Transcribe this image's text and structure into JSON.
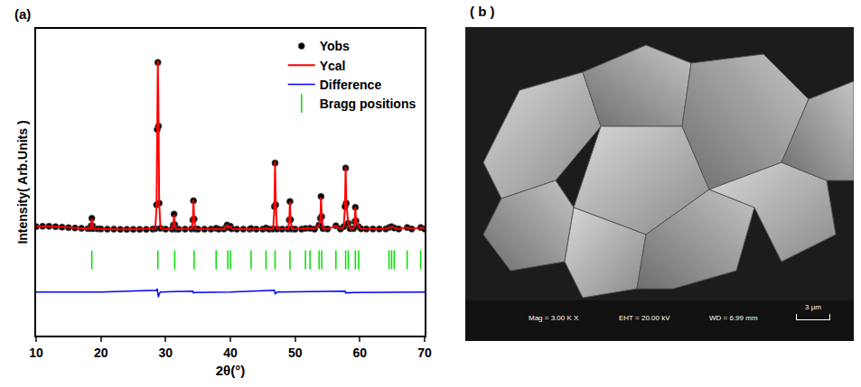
{
  "chart_data": {
    "type": "scatter",
    "panel_label": "(a)",
    "xlabel": "2θ(°)",
    "ylabel": "Intensity( Arb.Units )",
    "xlim": [
      10,
      70
    ],
    "xticks": [
      10,
      20,
      30,
      40,
      50,
      60,
      70
    ],
    "ylim": [
      -630,
      1200
    ],
    "tick_labels": "x",
    "legend": "top right",
    "series": [
      {
        "name": "Yobs",
        "type": "scatter",
        "marker": "circle",
        "color": "#000000",
        "x": [
          10,
          11,
          12,
          13,
          14,
          15,
          16,
          17,
          18,
          18.4,
          18.5,
          18.6,
          18.7,
          18.8,
          19.5,
          20,
          21,
          22,
          23,
          24,
          25,
          26,
          27,
          28,
          28.4,
          28.6,
          28.7,
          28.8,
          28.9,
          29.0,
          29.2,
          30,
          31,
          31.2,
          31.3,
          31.4,
          31.6,
          32,
          33,
          34,
          34.2,
          34.3,
          34.4,
          34.6,
          35,
          36,
          37,
          37.8,
          38.2,
          39,
          39.4,
          39.5,
          39.7,
          40,
          40.2,
          41,
          42,
          43,
          43.2,
          44,
          45,
          45.5,
          46,
          46.6,
          46.8,
          46.9,
          47,
          47.2,
          48,
          48.9,
          49.1,
          49.2,
          49.3,
          49.5,
          50,
          51,
          51.6,
          52.3,
          53,
          53.7,
          53.9,
          54,
          54.1,
          54.3,
          55,
          56.3,
          57,
          57.5,
          57.7,
          57.8,
          57.9,
          58.2,
          58.5,
          59,
          59.2,
          59.3,
          59.4,
          59.8,
          60.2,
          61,
          62,
          63,
          64,
          64.5,
          64.9,
          65.3,
          66,
          67.3,
          68,
          69.4,
          70
        ],
        "values": [
          20,
          22,
          22,
          20,
          17,
          14,
          12,
          10,
          8,
          8,
          25,
          70,
          25,
          8,
          7,
          6,
          5,
          5,
          4,
          4,
          4,
          4,
          4,
          5,
          8,
          150,
          600,
          1000,
          620,
          160,
          10,
          5,
          5,
          30,
          95,
          32,
          5,
          5,
          5,
          6,
          60,
          175,
          65,
          6,
          5,
          5,
          5,
          10,
          5,
          6,
          18,
          30,
          15,
          22,
          7,
          5,
          5,
          5,
          9,
          5,
          5,
          12,
          5,
          6,
          140,
          400,
          150,
          6,
          5,
          6,
          60,
          170,
          62,
          6,
          5,
          5,
          9,
          10,
          5,
          30,
          70,
          200,
          80,
          8,
          6,
          25,
          6,
          20,
          140,
          370,
          160,
          40,
          8,
          8,
          50,
          135,
          55,
          20,
          7,
          6,
          6,
          6,
          6,
          15,
          20,
          12,
          6,
          15,
          6,
          15,
          6
        ]
      },
      {
        "name": "Ycal",
        "type": "line",
        "color": "#ff0000",
        "x": [
          10,
          11,
          12,
          13,
          14,
          15,
          16,
          17,
          18,
          18.4,
          18.5,
          18.6,
          18.7,
          18.8,
          19.5,
          20,
          21,
          22,
          23,
          24,
          25,
          26,
          27,
          28,
          28.4,
          28.6,
          28.7,
          28.8,
          28.9,
          29.0,
          29.2,
          30,
          31,
          31.2,
          31.3,
          31.4,
          31.6,
          32,
          33,
          34,
          34.2,
          34.3,
          34.4,
          34.6,
          35,
          36,
          37,
          37.8,
          38.2,
          39,
          39.4,
          39.5,
          39.7,
          40,
          40.2,
          41,
          42,
          43,
          43.2,
          44,
          45,
          45.5,
          46,
          46.6,
          46.8,
          46.9,
          47,
          47.2,
          48,
          48.9,
          49.1,
          49.2,
          49.3,
          49.5,
          50,
          51,
          51.6,
          52.3,
          53,
          53.7,
          53.9,
          54,
          54.1,
          54.3,
          55,
          56.3,
          57,
          57.5,
          57.7,
          57.8,
          57.9,
          58.2,
          58.5,
          59,
          59.2,
          59.3,
          59.4,
          59.8,
          60.2,
          61,
          62,
          63,
          64,
          64.5,
          64.9,
          65.3,
          66,
          67.3,
          68,
          69.4,
          70
        ],
        "values": [
          20,
          22,
          22,
          20,
          17,
          14,
          12,
          10,
          8,
          8,
          24,
          68,
          26,
          8,
          7,
          6,
          5,
          5,
          4,
          4,
          4,
          4,
          4,
          5,
          8,
          140,
          580,
          1010,
          650,
          170,
          10,
          5,
          5,
          28,
          92,
          34,
          5,
          5,
          5,
          6,
          55,
          180,
          68,
          6,
          5,
          5,
          5,
          9,
          5,
          6,
          17,
          29,
          15,
          22,
          7,
          5,
          5,
          5,
          8,
          5,
          5,
          11,
          5,
          6,
          130,
          410,
          160,
          6,
          5,
          6,
          58,
          168,
          64,
          6,
          5,
          5,
          9,
          10,
          5,
          28,
          72,
          196,
          82,
          8,
          6,
          24,
          6,
          18,
          135,
          375,
          165,
          40,
          8,
          8,
          48,
          138,
          56,
          19,
          7,
          6,
          6,
          6,
          6,
          14,
          19,
          12,
          6,
          15,
          6,
          15,
          6
        ]
      },
      {
        "name": "Difference",
        "type": "line",
        "color": "#0000ff",
        "x": [
          10,
          18.5,
          18.6,
          18.7,
          20,
          28.6,
          28.7,
          28.8,
          28.9,
          29.0,
          29.2,
          31.3,
          34.2,
          34.3,
          34.4,
          40,
          46.8,
          46.9,
          47.0,
          47.2,
          54.0,
          57.7,
          57.8,
          57.9,
          59.3,
          70
        ],
        "values": [
          -370,
          -368,
          -368,
          -371,
          -370,
          -360,
          -350,
          -380,
          -400,
          -380,
          -370,
          -368,
          -365,
          -375,
          -373,
          -370,
          -360,
          -380,
          -380,
          -370,
          -366,
          -365,
          -375,
          -375,
          -373,
          -370
        ]
      },
      {
        "name": "Bragg positions",
        "type": "scatter",
        "marker": "tick",
        "color": "#00e000",
        "x": [
          18.6,
          28.8,
          31.4,
          34.4,
          37.8,
          39.6,
          40.0,
          43.2,
          45.5,
          46.9,
          49.2,
          51.6,
          52.3,
          53.7,
          54.1,
          56.3,
          57.8,
          58.2,
          59.3,
          59.8,
          64.5,
          64.9,
          65.3,
          67.3,
          69.4
        ],
        "values": [
          -178,
          -178,
          -178,
          -178,
          -178,
          -178,
          -178,
          -178,
          -178,
          -178,
          -178,
          -178,
          -178,
          -178,
          -178,
          -178,
          -178,
          -178,
          -178,
          -178,
          -178,
          -178,
          -178,
          -178,
          -178
        ]
      }
    ]
  },
  "image_panel": {
    "label": "( b )",
    "info": [
      "Mag = 3.00 K X",
      "EHT = 20.00 kV",
      "WD = 6.99 mm"
    ],
    "scale_bar": "3 μm"
  }
}
